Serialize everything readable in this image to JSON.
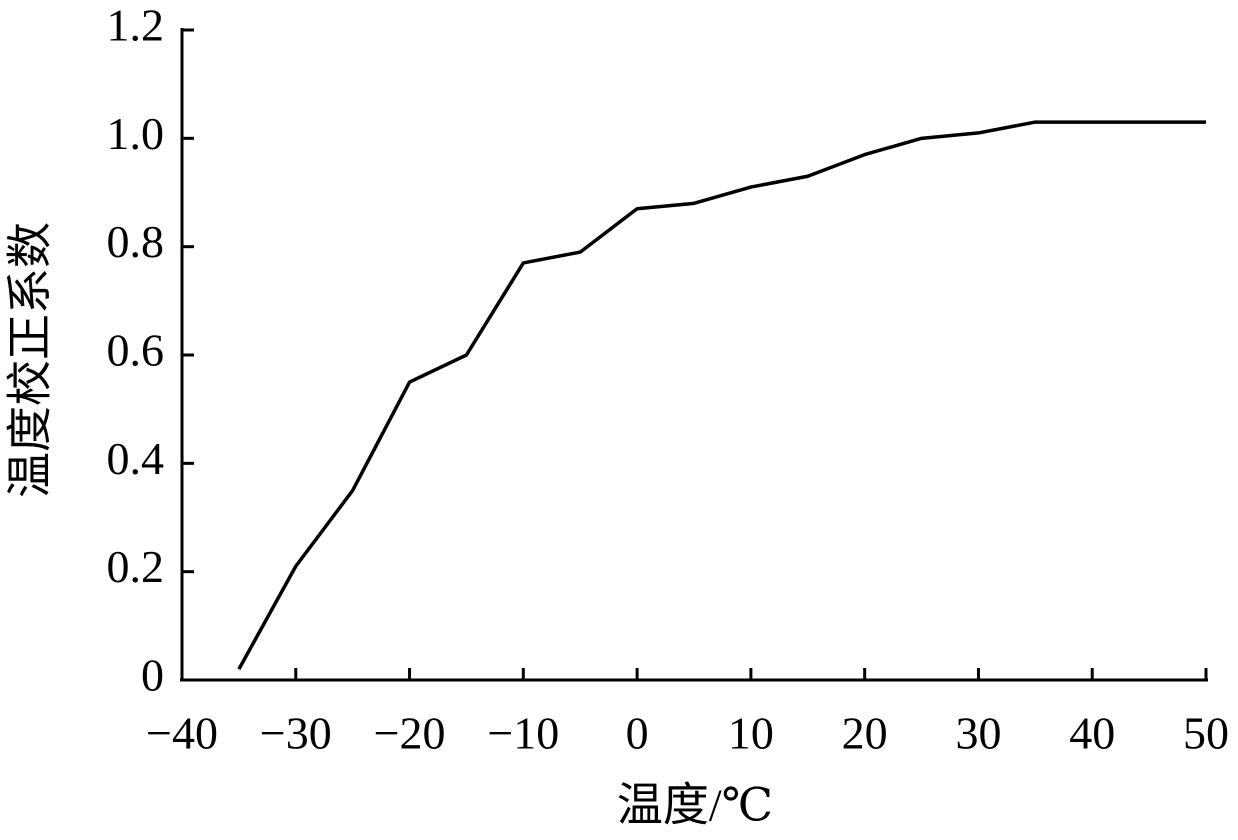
{
  "chart_data": {
    "type": "line",
    "x_label": "温度/℃",
    "y_label": "温度校正系数",
    "series": [
      {
        "name": "温度校正系数",
        "color": "#000000",
        "x": [
          -35,
          -30,
          -25,
          -20,
          -15,
          -10,
          -5,
          0,
          5,
          10,
          15,
          20,
          25,
          30,
          35,
          40,
          45,
          50
        ],
        "values": [
          0.02,
          0.21,
          0.35,
          0.55,
          0.6,
          0.77,
          0.79,
          0.87,
          0.88,
          0.91,
          0.93,
          0.97,
          1.0,
          1.01,
          1.03,
          1.03,
          1.03,
          1.03
        ]
      }
    ],
    "xlim": [
      -40,
      50
    ],
    "xticks": [
      {
        "value": -40,
        "label": "−40"
      },
      {
        "value": -30,
        "label": "−30"
      },
      {
        "value": -20,
        "label": "−20"
      },
      {
        "value": -10,
        "label": "−10"
      },
      0,
      10,
      20,
      30,
      40,
      50
    ],
    "ylim": [
      0,
      1.2
    ],
    "yticks": [
      0,
      0.2,
      0.4,
      0.6,
      0.8,
      {
        "value": 1,
        "label": "1.0"
      },
      1.2
    ],
    "grid": false
  }
}
